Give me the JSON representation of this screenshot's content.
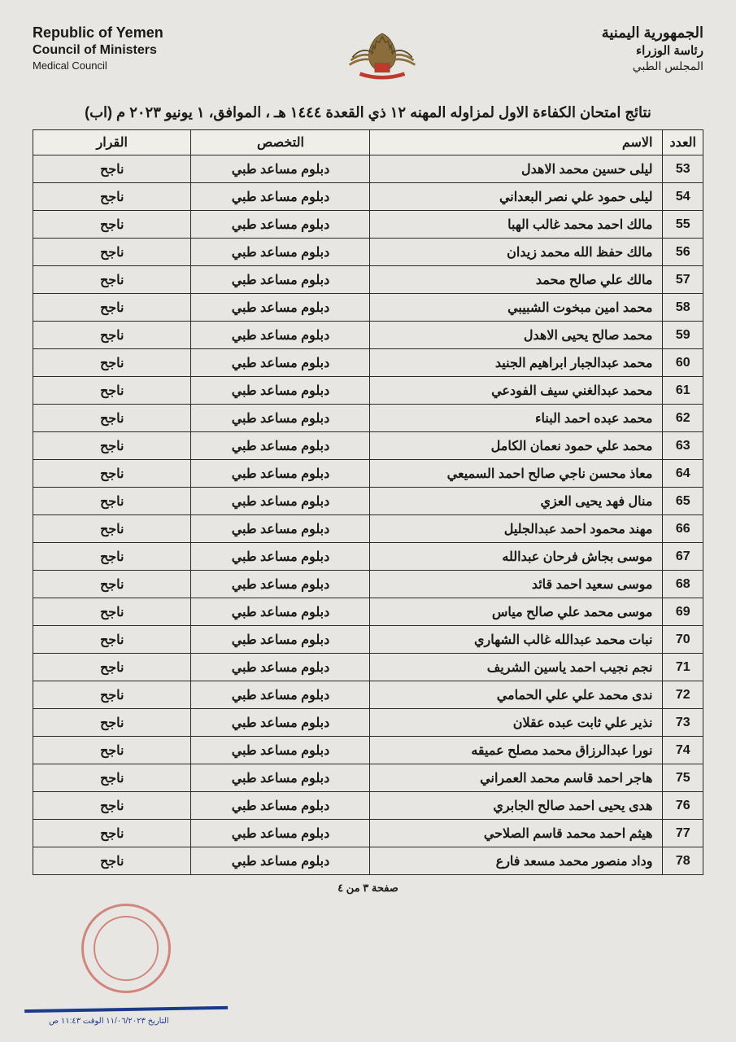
{
  "header": {
    "left_en": {
      "l1": "Republic of Yemen",
      "l2": "Council of Ministers",
      "l3": "Medical Council"
    },
    "right_ar": {
      "l1": "الجمهورية اليمنية",
      "l2": "رئاسة الوزراء",
      "l3": "المجلس الطبي"
    }
  },
  "title": "نتائج امتحان الكفاءة الاول لمزاوله المهنه ١٢ ذي القعدة ١٤٤٤ هـ ، الموافق، ١ يونيو ٢٠٢٣ م (اب)",
  "table": {
    "columns": [
      "العدد",
      "الاسم",
      "التخصص",
      "القرار"
    ],
    "specialization": "دبلوم مساعد طبي",
    "result": "ناجح",
    "col_widths": {
      "num": 48,
      "name": 360,
      "spec": 220
    },
    "font_size": 16,
    "border_color": "#2a2a2a",
    "rows": [
      {
        "num": "53",
        "name": "ليلى حسين محمد الاهدل"
      },
      {
        "num": "54",
        "name": "ليلى حمود علي نصر البعداني"
      },
      {
        "num": "55",
        "name": "مالك احمد محمد غالب الهبا"
      },
      {
        "num": "56",
        "name": "مالك حفظ الله محمد زيدان"
      },
      {
        "num": "57",
        "name": "مالك علي صالح محمد"
      },
      {
        "num": "58",
        "name": "محمد امين مبخوت الشبيبي"
      },
      {
        "num": "59",
        "name": "محمد صالح يحيى الاهدل"
      },
      {
        "num": "60",
        "name": "محمد عبدالجبار ابراهيم الجنيد"
      },
      {
        "num": "61",
        "name": "محمد عبدالغني سيف الفودعي"
      },
      {
        "num": "62",
        "name": "محمد عبده احمد البناء"
      },
      {
        "num": "63",
        "name": "محمد علي حمود نعمان الكامل"
      },
      {
        "num": "64",
        "name": "معاذ محسن ناجي صالح احمد السميعي"
      },
      {
        "num": "65",
        "name": "منال فهد يحيى العزي"
      },
      {
        "num": "66",
        "name": "مهند محمود احمد عبدالجليل"
      },
      {
        "num": "67",
        "name": "موسى بجاش فرحان عبدالله"
      },
      {
        "num": "68",
        "name": "موسى سعيد احمد قائد"
      },
      {
        "num": "69",
        "name": "موسى محمد علي صالح مياس"
      },
      {
        "num": "70",
        "name": "نبات محمد عبدالله غالب الشهاري"
      },
      {
        "num": "71",
        "name": "نجم نجيب احمد ياسين الشريف"
      },
      {
        "num": "72",
        "name": "ندى محمد علي علي الحمامي"
      },
      {
        "num": "73",
        "name": "نذير علي ثابت عبده عقلان"
      },
      {
        "num": "74",
        "name": "نورا عبدالرزاق محمد مصلح عميقه"
      },
      {
        "num": "75",
        "name": "هاجر احمد قاسم محمد العمراني"
      },
      {
        "num": "76",
        "name": "هدى يحيى احمد صالح الجابري"
      },
      {
        "num": "77",
        "name": "هيثم احمد محمد قاسم الصلاحي"
      },
      {
        "num": "78",
        "name": "وداد منصور محمد مسعد فارع"
      }
    ]
  },
  "footer": {
    "page": "صفحة ٣ من ٤",
    "date_stamp": "التاريخ ١١/٠٦/٢٠٢٣  الوقت ١١:٤٣ ص"
  },
  "colors": {
    "background": "#e8e6e2",
    "text": "#1a1a1a",
    "stamp": "#c0392b",
    "signature": "#1a3a8a"
  }
}
